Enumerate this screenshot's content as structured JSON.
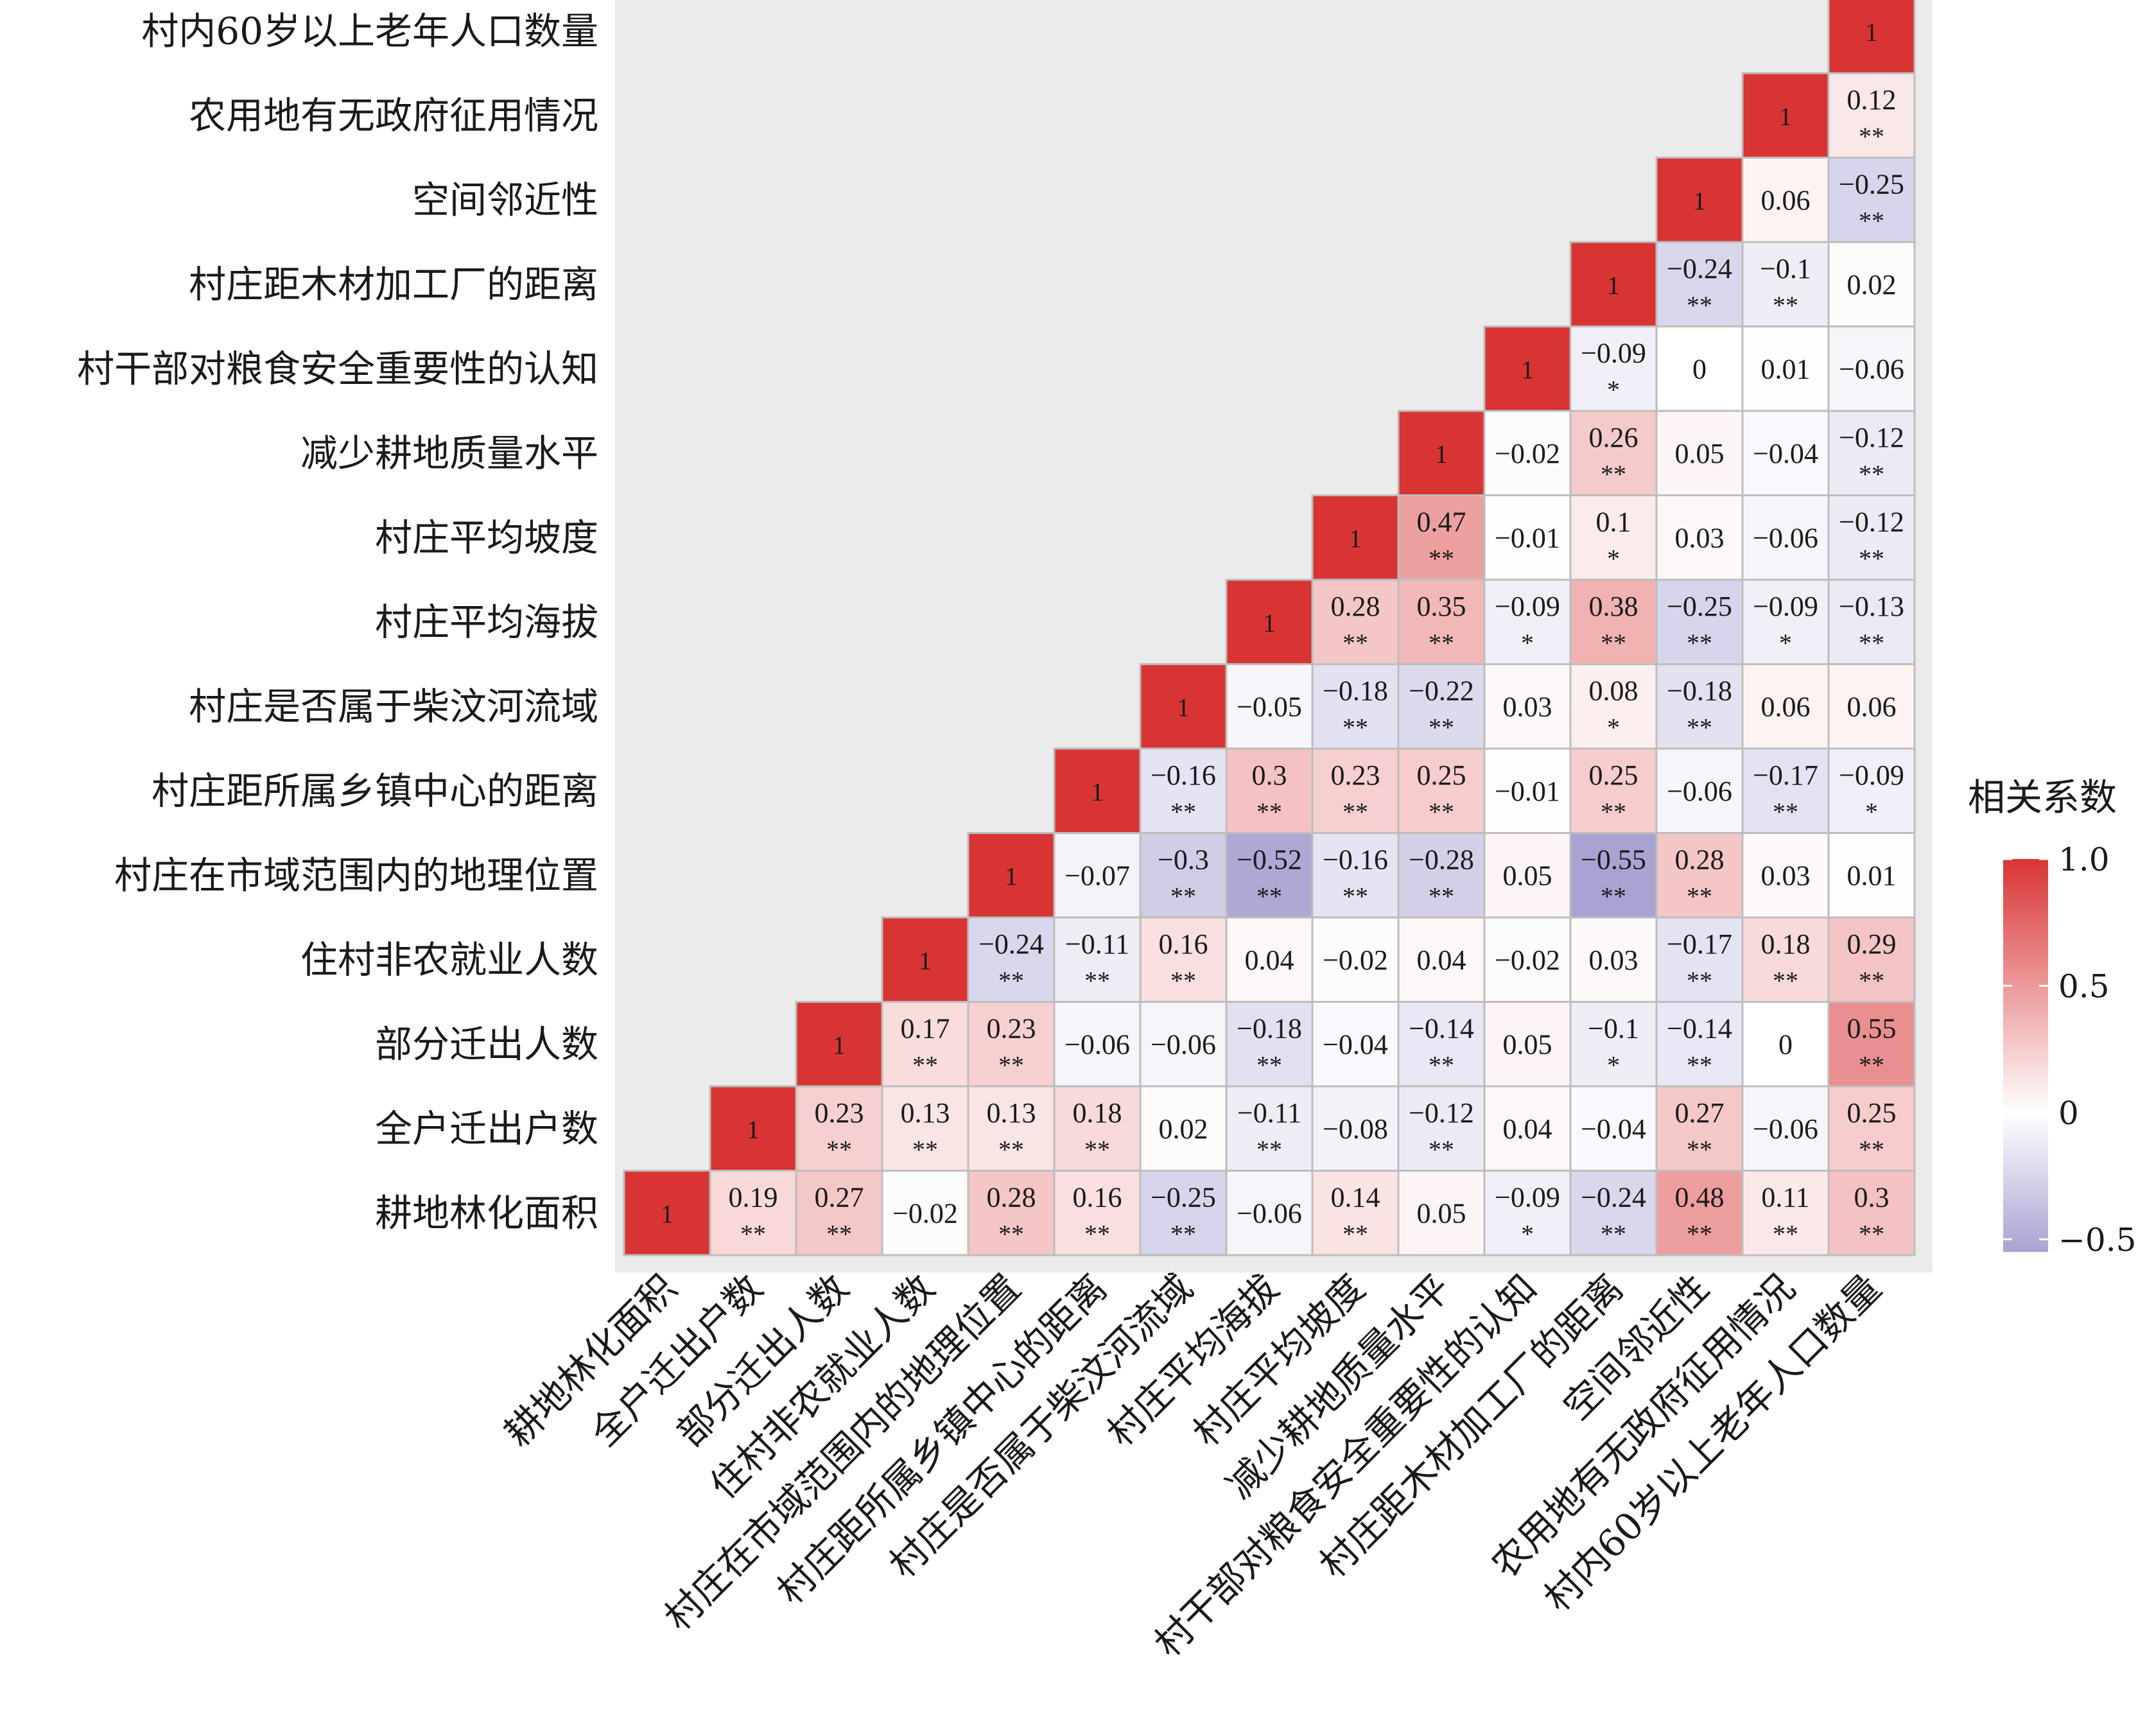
{
  "chart_data": {
    "type": "heatmap",
    "variables": [
      "耕地林化面积",
      "全户迁出户数",
      "部分迁出人数",
      "住村非农就业人数",
      "村庄在市域范围内的地理位置",
      "村庄距所属乡镇中心的距离",
      "村庄是否属于柴汶河流域",
      "村庄平均海拔",
      "村庄平均坡度",
      "减少耕地质量水平",
      "村干部对粮食安全重要性的认知",
      "村庄距木材加工厂的距离",
      "空间邻近性",
      "农用地有无政府征用情况",
      "村内60岁以上老年人口数量"
    ],
    "cells": [
      {
        "row": 0,
        "col": 0,
        "value": 1,
        "label": "1",
        "sig": ""
      },
      {
        "row": 0,
        "col": 1,
        "value": 0.19,
        "label": "0.19",
        "sig": "**"
      },
      {
        "row": 0,
        "col": 2,
        "value": 0.27,
        "label": "0.27",
        "sig": "**"
      },
      {
        "row": 0,
        "col": 3,
        "value": -0.02,
        "label": "−0.02",
        "sig": ""
      },
      {
        "row": 0,
        "col": 4,
        "value": 0.28,
        "label": "0.28",
        "sig": "**"
      },
      {
        "row": 0,
        "col": 5,
        "value": 0.16,
        "label": "0.16",
        "sig": "**"
      },
      {
        "row": 0,
        "col": 6,
        "value": -0.25,
        "label": "−0.25",
        "sig": "**"
      },
      {
        "row": 0,
        "col": 7,
        "value": -0.06,
        "label": "−0.06",
        "sig": ""
      },
      {
        "row": 0,
        "col": 8,
        "value": 0.14,
        "label": "0.14",
        "sig": "**"
      },
      {
        "row": 0,
        "col": 9,
        "value": 0.05,
        "label": "0.05",
        "sig": ""
      },
      {
        "row": 0,
        "col": 10,
        "value": -0.09,
        "label": "−0.09",
        "sig": "*"
      },
      {
        "row": 0,
        "col": 11,
        "value": -0.24,
        "label": "−0.24",
        "sig": "**"
      },
      {
        "row": 0,
        "col": 12,
        "value": 0.48,
        "label": "0.48",
        "sig": "**"
      },
      {
        "row": 0,
        "col": 13,
        "value": 0.11,
        "label": "0.11",
        "sig": "**"
      },
      {
        "row": 0,
        "col": 14,
        "value": 0.3,
        "label": "0.3",
        "sig": "**"
      },
      {
        "row": 1,
        "col": 1,
        "value": 1,
        "label": "1",
        "sig": ""
      },
      {
        "row": 1,
        "col": 2,
        "value": 0.23,
        "label": "0.23",
        "sig": "**"
      },
      {
        "row": 1,
        "col": 3,
        "value": 0.13,
        "label": "0.13",
        "sig": "**"
      },
      {
        "row": 1,
        "col": 4,
        "value": 0.13,
        "label": "0.13",
        "sig": "**"
      },
      {
        "row": 1,
        "col": 5,
        "value": 0.18,
        "label": "0.18",
        "sig": "**"
      },
      {
        "row": 1,
        "col": 6,
        "value": 0.02,
        "label": "0.02",
        "sig": ""
      },
      {
        "row": 1,
        "col": 7,
        "value": -0.11,
        "label": "−0.11",
        "sig": "**"
      },
      {
        "row": 1,
        "col": 8,
        "value": -0.08,
        "label": "−0.08",
        "sig": ""
      },
      {
        "row": 1,
        "col": 9,
        "value": -0.12,
        "label": "−0.12",
        "sig": "**"
      },
      {
        "row": 1,
        "col": 10,
        "value": 0.04,
        "label": "0.04",
        "sig": ""
      },
      {
        "row": 1,
        "col": 11,
        "value": -0.04,
        "label": "−0.04",
        "sig": ""
      },
      {
        "row": 1,
        "col": 12,
        "value": 0.27,
        "label": "0.27",
        "sig": "**"
      },
      {
        "row": 1,
        "col": 13,
        "value": -0.06,
        "label": "−0.06",
        "sig": ""
      },
      {
        "row": 1,
        "col": 14,
        "value": 0.25,
        "label": "0.25",
        "sig": "**"
      },
      {
        "row": 2,
        "col": 2,
        "value": 1,
        "label": "1",
        "sig": ""
      },
      {
        "row": 2,
        "col": 3,
        "value": 0.17,
        "label": "0.17",
        "sig": "**"
      },
      {
        "row": 2,
        "col": 4,
        "value": 0.23,
        "label": "0.23",
        "sig": "**"
      },
      {
        "row": 2,
        "col": 5,
        "value": -0.06,
        "label": "−0.06",
        "sig": ""
      },
      {
        "row": 2,
        "col": 6,
        "value": -0.06,
        "label": "−0.06",
        "sig": ""
      },
      {
        "row": 2,
        "col": 7,
        "value": -0.18,
        "label": "−0.18",
        "sig": "**"
      },
      {
        "row": 2,
        "col": 8,
        "value": -0.04,
        "label": "−0.04",
        "sig": ""
      },
      {
        "row": 2,
        "col": 9,
        "value": -0.14,
        "label": "−0.14",
        "sig": "**"
      },
      {
        "row": 2,
        "col": 10,
        "value": 0.05,
        "label": "0.05",
        "sig": ""
      },
      {
        "row": 2,
        "col": 11,
        "value": -0.1,
        "label": "−0.1",
        "sig": "*"
      },
      {
        "row": 2,
        "col": 12,
        "value": -0.14,
        "label": "−0.14",
        "sig": "**"
      },
      {
        "row": 2,
        "col": 13,
        "value": 0,
        "label": "0",
        "sig": ""
      },
      {
        "row": 2,
        "col": 14,
        "value": 0.55,
        "label": "0.55",
        "sig": "**"
      },
      {
        "row": 3,
        "col": 3,
        "value": 1,
        "label": "1",
        "sig": ""
      },
      {
        "row": 3,
        "col": 4,
        "value": -0.24,
        "label": "−0.24",
        "sig": "**"
      },
      {
        "row": 3,
        "col": 5,
        "value": -0.11,
        "label": "−0.11",
        "sig": "**"
      },
      {
        "row": 3,
        "col": 6,
        "value": 0.16,
        "label": "0.16",
        "sig": "**"
      },
      {
        "row": 3,
        "col": 7,
        "value": 0.04,
        "label": "0.04",
        "sig": ""
      },
      {
        "row": 3,
        "col": 8,
        "value": -0.02,
        "label": "−0.02",
        "sig": ""
      },
      {
        "row": 3,
        "col": 9,
        "value": 0.04,
        "label": "0.04",
        "sig": ""
      },
      {
        "row": 3,
        "col": 10,
        "value": -0.02,
        "label": "−0.02",
        "sig": ""
      },
      {
        "row": 3,
        "col": 11,
        "value": 0.03,
        "label": "0.03",
        "sig": ""
      },
      {
        "row": 3,
        "col": 12,
        "value": -0.17,
        "label": "−0.17",
        "sig": "**"
      },
      {
        "row": 3,
        "col": 13,
        "value": 0.18,
        "label": "0.18",
        "sig": "**"
      },
      {
        "row": 3,
        "col": 14,
        "value": 0.29,
        "label": "0.29",
        "sig": "**"
      },
      {
        "row": 4,
        "col": 4,
        "value": 1,
        "label": "1",
        "sig": ""
      },
      {
        "row": 4,
        "col": 5,
        "value": -0.07,
        "label": "−0.07",
        "sig": ""
      },
      {
        "row": 4,
        "col": 6,
        "value": -0.3,
        "label": "−0.3",
        "sig": "**"
      },
      {
        "row": 4,
        "col": 7,
        "value": -0.52,
        "label": "−0.52",
        "sig": "**"
      },
      {
        "row": 4,
        "col": 8,
        "value": -0.16,
        "label": "−0.16",
        "sig": "**"
      },
      {
        "row": 4,
        "col": 9,
        "value": -0.28,
        "label": "−0.28",
        "sig": "**"
      },
      {
        "row": 4,
        "col": 10,
        "value": 0.05,
        "label": "0.05",
        "sig": ""
      },
      {
        "row": 4,
        "col": 11,
        "value": -0.55,
        "label": "−0.55",
        "sig": "**"
      },
      {
        "row": 4,
        "col": 12,
        "value": 0.28,
        "label": "0.28",
        "sig": "**"
      },
      {
        "row": 4,
        "col": 13,
        "value": 0.03,
        "label": "0.03",
        "sig": ""
      },
      {
        "row": 4,
        "col": 14,
        "value": 0.01,
        "label": "0.01",
        "sig": ""
      },
      {
        "row": 5,
        "col": 5,
        "value": 1,
        "label": "1",
        "sig": ""
      },
      {
        "row": 5,
        "col": 6,
        "value": -0.16,
        "label": "−0.16",
        "sig": "**"
      },
      {
        "row": 5,
        "col": 7,
        "value": 0.3,
        "label": "0.3",
        "sig": "**"
      },
      {
        "row": 5,
        "col": 8,
        "value": 0.23,
        "label": "0.23",
        "sig": "**"
      },
      {
        "row": 5,
        "col": 9,
        "value": 0.25,
        "label": "0.25",
        "sig": "**"
      },
      {
        "row": 5,
        "col": 10,
        "value": -0.01,
        "label": "−0.01",
        "sig": ""
      },
      {
        "row": 5,
        "col": 11,
        "value": 0.25,
        "label": "0.25",
        "sig": "**"
      },
      {
        "row": 5,
        "col": 12,
        "value": -0.06,
        "label": "−0.06",
        "sig": ""
      },
      {
        "row": 5,
        "col": 13,
        "value": -0.17,
        "label": "−0.17",
        "sig": "**"
      },
      {
        "row": 5,
        "col": 14,
        "value": -0.09,
        "label": "−0.09",
        "sig": "*"
      },
      {
        "row": 6,
        "col": 6,
        "value": 1,
        "label": "1",
        "sig": ""
      },
      {
        "row": 6,
        "col": 7,
        "value": -0.05,
        "label": "−0.05",
        "sig": ""
      },
      {
        "row": 6,
        "col": 8,
        "value": -0.18,
        "label": "−0.18",
        "sig": "**"
      },
      {
        "row": 6,
        "col": 9,
        "value": -0.22,
        "label": "−0.22",
        "sig": "**"
      },
      {
        "row": 6,
        "col": 10,
        "value": 0.03,
        "label": "0.03",
        "sig": ""
      },
      {
        "row": 6,
        "col": 11,
        "value": 0.08,
        "label": "0.08",
        "sig": "*"
      },
      {
        "row": 6,
        "col": 12,
        "value": -0.18,
        "label": "−0.18",
        "sig": "**"
      },
      {
        "row": 6,
        "col": 13,
        "value": 0.06,
        "label": "0.06",
        "sig": ""
      },
      {
        "row": 6,
        "col": 14,
        "value": 0.06,
        "label": "0.06",
        "sig": ""
      },
      {
        "row": 7,
        "col": 7,
        "value": 1,
        "label": "1",
        "sig": ""
      },
      {
        "row": 7,
        "col": 8,
        "value": 0.28,
        "label": "0.28",
        "sig": "**"
      },
      {
        "row": 7,
        "col": 9,
        "value": 0.35,
        "label": "0.35",
        "sig": "**"
      },
      {
        "row": 7,
        "col": 10,
        "value": -0.09,
        "label": "−0.09",
        "sig": "*"
      },
      {
        "row": 7,
        "col": 11,
        "value": 0.38,
        "label": "0.38",
        "sig": "**"
      },
      {
        "row": 7,
        "col": 12,
        "value": -0.25,
        "label": "−0.25",
        "sig": "**"
      },
      {
        "row": 7,
        "col": 13,
        "value": -0.09,
        "label": "−0.09",
        "sig": "*"
      },
      {
        "row": 7,
        "col": 14,
        "value": -0.13,
        "label": "−0.13",
        "sig": "**"
      },
      {
        "row": 8,
        "col": 8,
        "value": 1,
        "label": "1",
        "sig": ""
      },
      {
        "row": 8,
        "col": 9,
        "value": 0.47,
        "label": "0.47",
        "sig": "**"
      },
      {
        "row": 8,
        "col": 10,
        "value": -0.01,
        "label": "−0.01",
        "sig": ""
      },
      {
        "row": 8,
        "col": 11,
        "value": 0.1,
        "label": "0.1",
        "sig": "*"
      },
      {
        "row": 8,
        "col": 12,
        "value": 0.03,
        "label": "0.03",
        "sig": ""
      },
      {
        "row": 8,
        "col": 13,
        "value": -0.06,
        "label": "−0.06",
        "sig": ""
      },
      {
        "row": 8,
        "col": 14,
        "value": -0.12,
        "label": "−0.12",
        "sig": "**"
      },
      {
        "row": 9,
        "col": 9,
        "value": 1,
        "label": "1",
        "sig": ""
      },
      {
        "row": 9,
        "col": 10,
        "value": -0.02,
        "label": "−0.02",
        "sig": ""
      },
      {
        "row": 9,
        "col": 11,
        "value": 0.26,
        "label": "0.26",
        "sig": "**"
      },
      {
        "row": 9,
        "col": 12,
        "value": 0.05,
        "label": "0.05",
        "sig": ""
      },
      {
        "row": 9,
        "col": 13,
        "value": -0.04,
        "label": "−0.04",
        "sig": ""
      },
      {
        "row": 9,
        "col": 14,
        "value": -0.12,
        "label": "−0.12",
        "sig": "**"
      },
      {
        "row": 10,
        "col": 10,
        "value": 1,
        "label": "1",
        "sig": ""
      },
      {
        "row": 10,
        "col": 11,
        "value": -0.09,
        "label": "−0.09",
        "sig": "*"
      },
      {
        "row": 10,
        "col": 12,
        "value": 0,
        "label": "0",
        "sig": ""
      },
      {
        "row": 10,
        "col": 13,
        "value": 0.01,
        "label": "0.01",
        "sig": ""
      },
      {
        "row": 10,
        "col": 14,
        "value": -0.06,
        "label": "−0.06",
        "sig": ""
      },
      {
        "row": 11,
        "col": 11,
        "value": 1,
        "label": "1",
        "sig": ""
      },
      {
        "row": 11,
        "col": 12,
        "value": -0.24,
        "label": "−0.24",
        "sig": "**"
      },
      {
        "row": 11,
        "col": 13,
        "value": -0.1,
        "label": "−0.1",
        "sig": "**"
      },
      {
        "row": 11,
        "col": 14,
        "value": 0.02,
        "label": "0.02",
        "sig": ""
      },
      {
        "row": 12,
        "col": 12,
        "value": 1,
        "label": "1",
        "sig": ""
      },
      {
        "row": 12,
        "col": 13,
        "value": 0.06,
        "label": "0.06",
        "sig": ""
      },
      {
        "row": 12,
        "col": 14,
        "value": -0.25,
        "label": "−0.25",
        "sig": "**"
      },
      {
        "row": 13,
        "col": 13,
        "value": 1,
        "label": "1",
        "sig": ""
      },
      {
        "row": 13,
        "col": 14,
        "value": 0.12,
        "label": "0.12",
        "sig": "**"
      },
      {
        "row": 14,
        "col": 14,
        "value": 1,
        "label": "1",
        "sig": ""
      }
    ],
    "legend": {
      "title": "相关系数",
      "tick_labels": [
        "1.0",
        "0.5",
        "0",
        "−0.5"
      ],
      "tick_values": [
        1.0,
        0.5,
        0,
        -0.5
      ],
      "range": [
        -0.55,
        1.0
      ],
      "placement": "right"
    },
    "colors": {
      "positive": "#d93434",
      "neutral": "#ffffff",
      "negative": "#a8a3d2",
      "panel_background": "#ebebeb",
      "cell_border": "#bdbdbd"
    }
  }
}
